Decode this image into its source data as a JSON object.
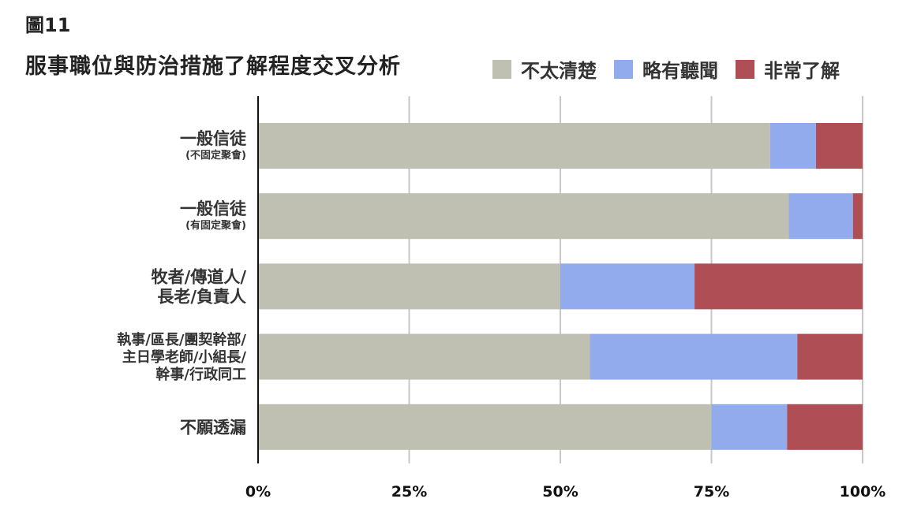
{
  "figure_label": "圖11",
  "chart_data": {
    "type": "bar",
    "orientation": "horizontal",
    "stacked": true,
    "percent": true,
    "title": "服事職位與防治措施了解程度交叉分析",
    "categories": [
      {
        "lines": [
          "一般信徒"
        ],
        "sub": "(不固定聚會)"
      },
      {
        "lines": [
          "一般信徒"
        ],
        "sub": "(有固定聚會)"
      },
      {
        "lines": [
          "牧者/傳道人/",
          "長老/負責人"
        ]
      },
      {
        "lines": [
          "執事/區長/團契幹部/",
          "主日學老師/小組長/",
          "幹事/行政同工"
        ],
        "small": true
      },
      {
        "lines": [
          "不願透漏"
        ]
      }
    ],
    "series": [
      {
        "name": "不太清楚",
        "color": "#bfc0b2",
        "values": [
          84.7,
          87.8,
          50.0,
          54.9,
          75.0
        ]
      },
      {
        "name": "略有聽聞",
        "color": "#92abec",
        "values": [
          7.6,
          10.6,
          22.2,
          34.3,
          12.5
        ]
      },
      {
        "name": "非常了解",
        "color": "#b04e55",
        "values": [
          7.7,
          1.6,
          27.8,
          10.8,
          12.5
        ]
      }
    ],
    "xlim": [
      0,
      100
    ],
    "xticks": [
      "0%",
      "25%",
      "50%",
      "75%",
      "100%"
    ],
    "grid": true,
    "legend_position": "top-right"
  }
}
